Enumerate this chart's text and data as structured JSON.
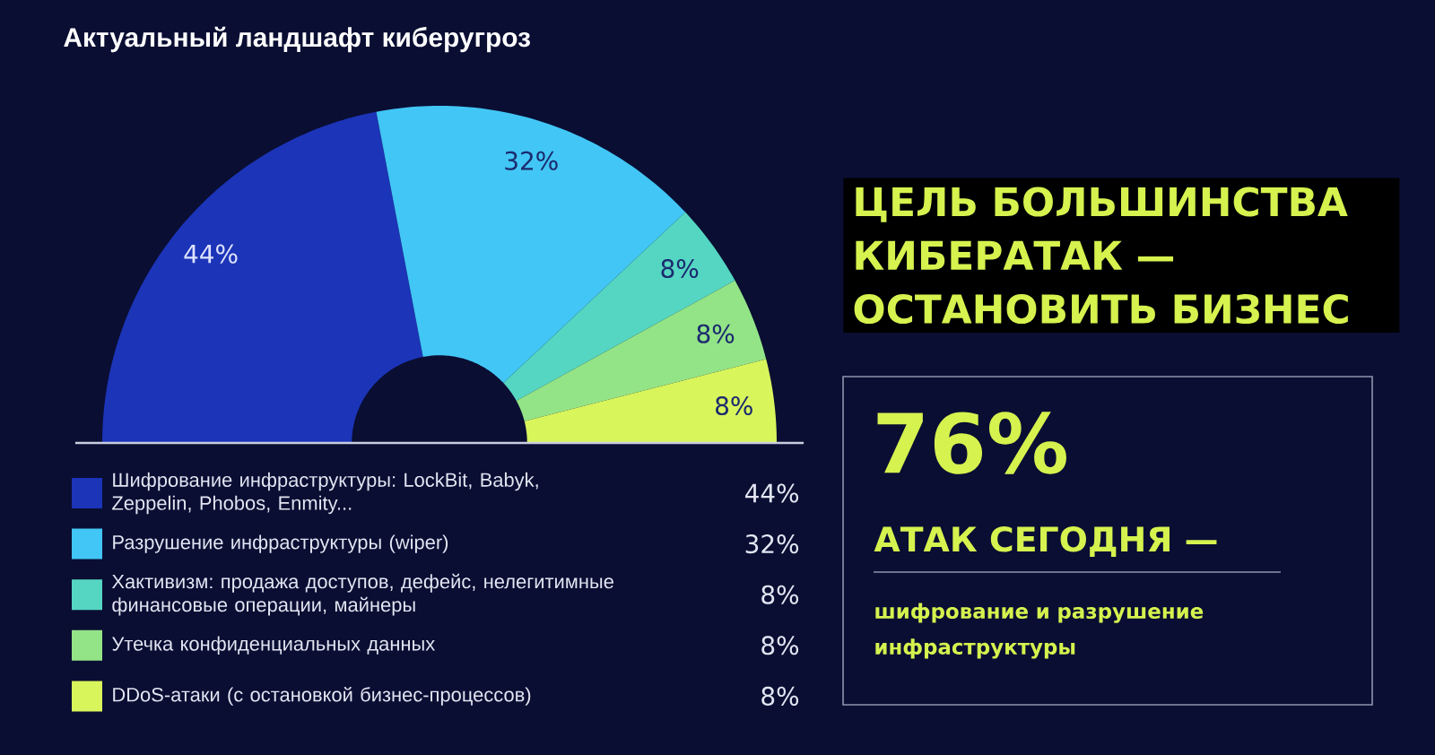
{
  "chart_data": {
    "type": "donut",
    "title": "Актуальный ландшафт киберугроз",
    "categories": [
      "Шифрование инфраструктуры: LockBit, Babyk, Zeppelin, Phobos, Enmity...",
      "Разрушение инфраструктуры (wiper)",
      "Хактивизм: продажа доступов, дефейс, нелегитимные финансовые операции, майнеры",
      "Утечка конфиденциальных данных",
      "DDoS-атаки (с остановкой бизнес-процессов)"
    ],
    "values": [
      44,
      32,
      8,
      8,
      8
    ],
    "colors": [
      "#1c34b8",
      "#42c6f5",
      "#55d6c2",
      "#93e487",
      "#d9f55c"
    ],
    "value_labels": [
      "44%",
      "32%",
      "8%",
      "8%",
      "8%"
    ],
    "legend": "bottom",
    "annotations": [
      "ЦЕЛЬ БОЛЬШИНСТВА КИБЕРАТАК — ОСТАНОВИТЬ БИЗНЕС",
      "76%",
      "АТАК СЕГОДНЯ —",
      "шифрование и разрушение инфраструктуры"
    ]
  }
}
